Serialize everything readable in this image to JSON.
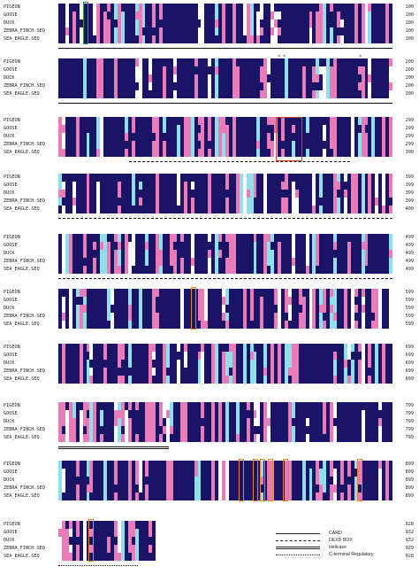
{
  "species": [
    "PIGEON",
    "GOOSE",
    "DUCK",
    "ZEBRA_FINCH.SEQ",
    "SEA_EAGLE.SEQ"
  ],
  "blocks": [
    {
      "numbers": [
        "100",
        "100",
        "100",
        "100",
        "100"
      ],
      "seed": 3,
      "underline": "card"
    },
    {
      "numbers": [
        "200",
        "200",
        "200",
        "200",
        "200"
      ],
      "seed": 7,
      "underline": "card"
    },
    {
      "numbers": [
        "299",
        "299",
        "299",
        "299",
        "300"
      ],
      "seed": 11,
      "underline": "dexd"
    },
    {
      "numbers": [
        "399",
        "399",
        "399",
        "399",
        "400"
      ],
      "seed": 17,
      "underline": "dexd"
    },
    {
      "numbers": [
        "499",
        "499",
        "499",
        "499",
        "499"
      ],
      "seed": 23,
      "underline": "dexd"
    },
    {
      "numbers": [
        "599",
        "599",
        "599",
        "599",
        "599"
      ],
      "seed": 29,
      "underline": "none"
    },
    {
      "numbers": [
        "699",
        "699",
        "699",
        "699",
        "699"
      ],
      "seed": 31,
      "underline": "none"
    },
    {
      "numbers": [
        "799",
        "799",
        "799",
        "799",
        "799"
      ],
      "seed": 37,
      "underline": "helicase"
    },
    {
      "numbers": [
        "899",
        "899",
        "899",
        "899",
        "899"
      ],
      "seed": 41,
      "underline": "none"
    },
    {
      "numbers": [
        "928",
        "932",
        "932",
        "929",
        "928"
      ],
      "seed": 43,
      "underline": "cterm"
    }
  ],
  "legend": [
    {
      "style": "card",
      "label": "CARD"
    },
    {
      "style": "dexd",
      "label": "DEXD BOX"
    },
    {
      "style": "helicase",
      "label": "Helicase"
    },
    {
      "style": "cterm",
      "label": "C-terminal Regulatory"
    }
  ],
  "colors": {
    "conserved": "#1a1466",
    "similar": "#e87bb8",
    "partial": "#8fe0ea",
    "box_green": "#2e9a3a",
    "box_red": "#d83a2a",
    "box_orange": "#e8892a"
  }
}
